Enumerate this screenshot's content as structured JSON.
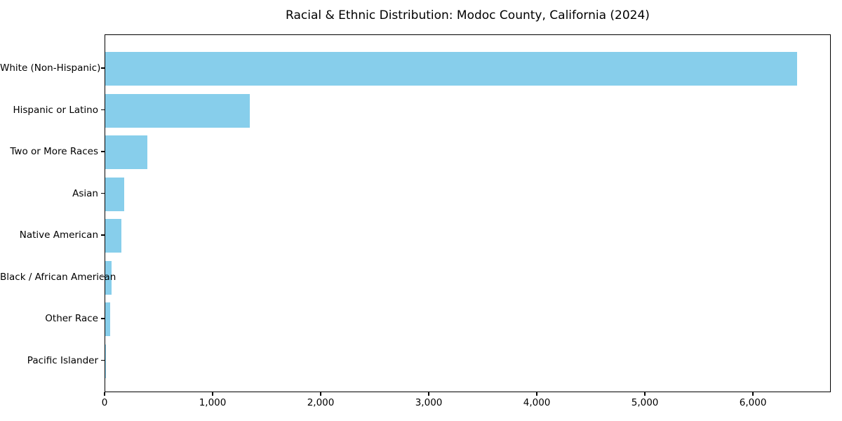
{
  "chart_data": {
    "type": "bar",
    "orientation": "horizontal",
    "title": "Racial & Ethnic Distribution: Modoc County, California (2024)",
    "categories": [
      "White (Non-Hispanic)",
      "Hispanic or Latino",
      "Two or More Races",
      "Asian",
      "Native American",
      "Black / African American",
      "Other Race",
      "Pacific Islander"
    ],
    "values": [
      6400,
      1340,
      390,
      175,
      150,
      58,
      45,
      5
    ],
    "xlabel": "",
    "ylabel": "",
    "xlim": [
      0,
      6720
    ],
    "xticks": [
      0,
      1000,
      2000,
      3000,
      4000,
      5000,
      6000
    ],
    "xtick_labels": [
      "0",
      "1,000",
      "2,000",
      "3,000",
      "4,000",
      "5,000",
      "6,000"
    ],
    "bar_color": "#87CEEB",
    "axis_color": "#000000",
    "text_color": "#000000",
    "background_color": "#FFFFFF",
    "grid": false,
    "legend": "none"
  }
}
